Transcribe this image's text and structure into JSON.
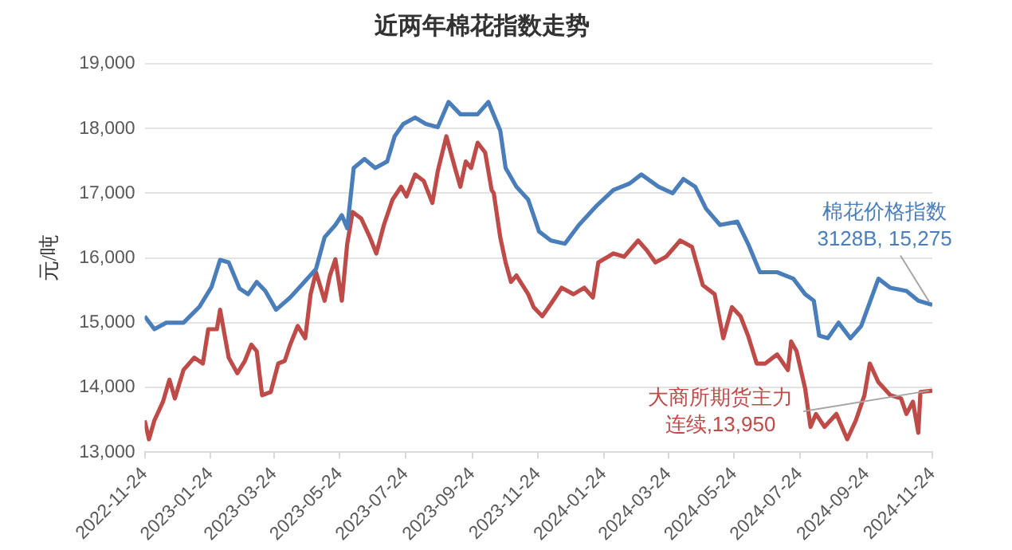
{
  "chart_data": {
    "type": "line",
    "title": "近两年棉花指数走势",
    "ylabel": "元/吨",
    "ylim": [
      13000,
      19000
    ],
    "yticks": [
      {
        "value": 13000,
        "label": "13,000"
      },
      {
        "value": 14000,
        "label": "14,000"
      },
      {
        "value": 15000,
        "label": "15,000"
      },
      {
        "value": 16000,
        "label": "16,000"
      },
      {
        "value": 17000,
        "label": "17,000"
      },
      {
        "value": 18000,
        "label": "18,000"
      },
      {
        "value": 19000,
        "label": "19,000"
      }
    ],
    "xlim": [
      "2022-11-24",
      "2024-11-24"
    ],
    "xticks": [
      "2022-11-24",
      "2023-01-24",
      "2023-03-24",
      "2023-05-24",
      "2023-07-24",
      "2023-09-24",
      "2023-11-24",
      "2024-01-24",
      "2024-03-24",
      "2024-05-24",
      "2024-07-24",
      "2024-09-24",
      "2024-11-24"
    ],
    "grid": "y",
    "legend": false,
    "marker": "none",
    "line_style": "solid",
    "series": [
      {
        "color": "#4a7ebb",
        "x": [
          "2022-11-24",
          "2022-12-03",
          "2022-12-14",
          "2022-12-30",
          "2023-01-14",
          "2023-01-25",
          "2023-02-02",
          "2023-02-10",
          "2023-02-20",
          "2023-02-28",
          "2023-03-08",
          "2023-03-16",
          "2023-03-26",
          "2023-04-08",
          "2023-04-19",
          "2023-05-02",
          "2023-05-10",
          "2023-05-20",
          "2023-05-26",
          "2023-05-31",
          "2023-06-06",
          "2023-06-16",
          "2023-06-26",
          "2023-07-07",
          "2023-07-14",
          "2023-07-22",
          "2023-08-02",
          "2023-08-12",
          "2023-08-23",
          "2023-09-02",
          "2023-09-13",
          "2023-09-29",
          "2023-10-09",
          "2023-10-20",
          "2023-10-25",
          "2023-11-04",
          "2023-11-15",
          "2023-11-25",
          "2023-12-06",
          "2023-12-19",
          "2024-01-01",
          "2024-01-17",
          "2024-02-02",
          "2024-02-17",
          "2024-02-28",
          "2024-03-15",
          "2024-03-28",
          "2024-04-07",
          "2024-04-18",
          "2024-04-28",
          "2024-05-11",
          "2024-05-27",
          "2024-06-06",
          "2024-06-17",
          "2024-07-03",
          "2024-07-18",
          "2024-07-29",
          "2024-08-06",
          "2024-08-11",
          "2024-08-19",
          "2024-08-29",
          "2024-09-09",
          "2024-09-19",
          "2024-10-05",
          "2024-10-16",
          "2024-10-31",
          "2024-11-11",
          "2024-11-24"
        ],
        "values": [
          15100,
          14900,
          15000,
          15000,
          15250,
          15550,
          15970,
          15930,
          15530,
          15440,
          15630,
          15490,
          15200,
          15390,
          15590,
          15830,
          16320,
          16510,
          16660,
          16460,
          17390,
          17530,
          17390,
          17490,
          17880,
          18070,
          18170,
          18070,
          18020,
          18410,
          18220,
          18220,
          18410,
          17970,
          17390,
          17100,
          16900,
          16410,
          16270,
          16220,
          16510,
          16800,
          17050,
          17150,
          17290,
          17100,
          17000,
          17220,
          17100,
          16760,
          16510,
          16560,
          16220,
          15780,
          15780,
          15680,
          15440,
          15340,
          14800,
          14760,
          15000,
          14760,
          14950,
          15680,
          15540,
          15490,
          15340,
          15275
        ]
      },
      {
        "color": "#be4b48",
        "x": [
          "2022-11-24",
          "2022-11-28",
          "2022-12-03",
          "2022-12-11",
          "2022-12-17",
          "2022-12-22",
          "2022-12-30",
          "2023-01-09",
          "2023-01-17",
          "2023-01-22",
          "2023-01-30",
          "2023-02-02",
          "2023-02-10",
          "2023-02-18",
          "2023-02-25",
          "2023-03-03",
          "2023-03-08",
          "2023-03-13",
          "2023-03-21",
          "2023-03-28",
          "2023-04-03",
          "2023-04-08",
          "2023-04-15",
          "2023-04-22",
          "2023-04-27",
          "2023-05-02",
          "2023-05-10",
          "2023-05-15",
          "2023-05-20",
          "2023-05-26",
          "2023-05-31",
          "2023-06-05",
          "2023-06-13",
          "2023-06-21",
          "2023-06-27",
          "2023-07-04",
          "2023-07-12",
          "2023-07-20",
          "2023-07-25",
          "2023-08-02",
          "2023-08-10",
          "2023-08-18",
          "2023-08-23",
          "2023-08-31",
          "2023-09-08",
          "2023-09-13",
          "2023-09-18",
          "2023-09-23",
          "2023-09-29",
          "2023-10-06",
          "2023-10-12",
          "2023-10-14",
          "2023-10-20",
          "2023-10-25",
          "2023-10-30",
          "2023-11-04",
          "2023-11-15",
          "2023-11-20",
          "2023-11-28",
          "2023-12-06",
          "2023-12-16",
          "2023-12-27",
          "2024-01-06",
          "2024-01-14",
          "2024-01-19",
          "2024-02-02",
          "2024-02-12",
          "2024-02-25",
          "2024-03-04",
          "2024-03-12",
          "2024-03-22",
          "2024-04-04",
          "2024-04-15",
          "2024-04-25",
          "2024-05-06",
          "2024-05-14",
          "2024-05-22",
          "2024-05-30",
          "2024-06-06",
          "2024-06-14",
          "2024-06-22",
          "2024-07-03",
          "2024-07-13",
          "2024-07-16",
          "2024-07-21",
          "2024-07-29",
          "2024-08-03",
          "2024-08-08",
          "2024-08-16",
          "2024-08-27",
          "2024-09-06",
          "2024-09-14",
          "2024-09-22",
          "2024-09-27",
          "2024-10-05",
          "2024-10-16",
          "2024-10-26",
          "2024-10-31",
          "2024-11-06",
          "2024-11-11",
          "2024-11-13",
          "2024-11-24"
        ],
        "values": [
          13490,
          13200,
          13490,
          13780,
          14120,
          13830,
          14270,
          14460,
          14370,
          14900,
          14900,
          15200,
          14460,
          14220,
          14410,
          14660,
          14560,
          13880,
          13930,
          14370,
          14410,
          14660,
          14950,
          14760,
          15440,
          15780,
          15340,
          15730,
          15980,
          15340,
          16220,
          16710,
          16610,
          16320,
          16070,
          16510,
          16900,
          17100,
          16950,
          17290,
          17190,
          16850,
          17340,
          17880,
          17390,
          17100,
          17490,
          17390,
          17780,
          17630,
          17050,
          17000,
          16320,
          15930,
          15630,
          15730,
          15440,
          15240,
          15100,
          15290,
          15540,
          15440,
          15540,
          15390,
          15930,
          16070,
          16020,
          16270,
          16120,
          15930,
          16020,
          16270,
          16170,
          15580,
          15440,
          14760,
          15240,
          15100,
          14800,
          14370,
          14370,
          14510,
          14270,
          14710,
          14560,
          13980,
          13390,
          13590,
          13390,
          13590,
          13200,
          13490,
          13880,
          14370,
          14080,
          13880,
          13830,
          13590,
          13780,
          13300,
          13930,
          13950
        ]
      }
    ],
    "annotations": [
      {
        "text": "棉花价格指数\n3128B, 15,275",
        "x": "2024-11-24",
        "y": 15275
      },
      {
        "text": "大商所期货主力连续,13,950",
        "x": "2024-11-24",
        "y": 13950
      }
    ]
  }
}
